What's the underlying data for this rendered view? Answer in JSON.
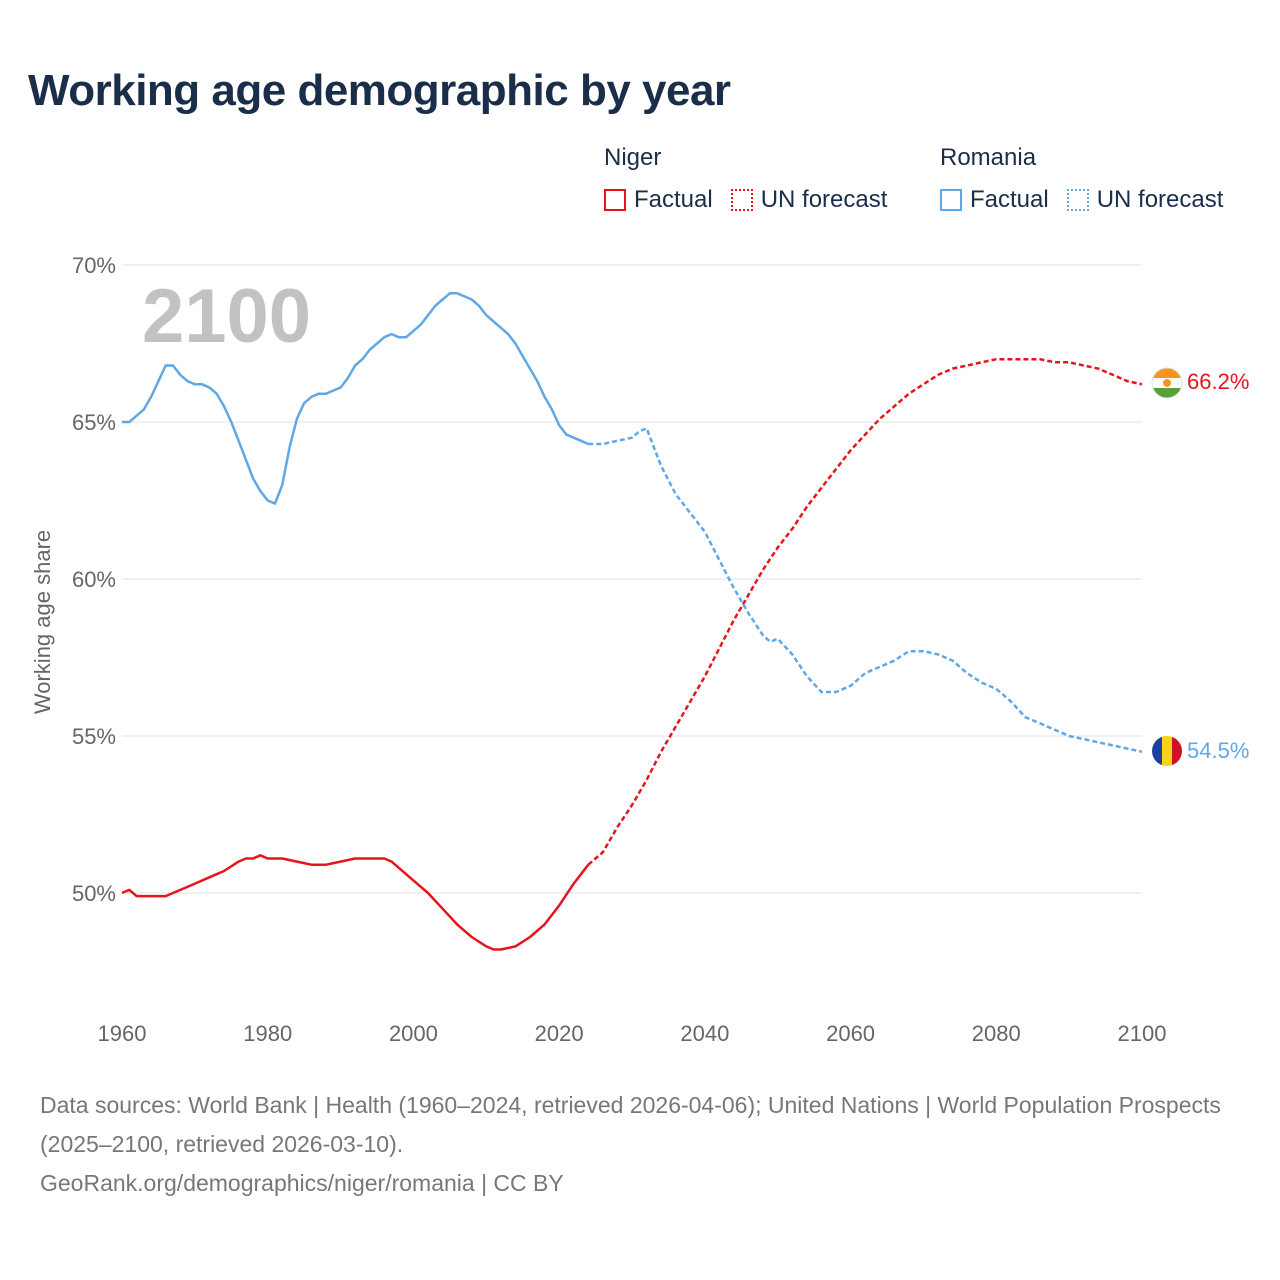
{
  "title": "Working age demographic by year",
  "watermark_year": "2100",
  "legend": {
    "groups": [
      {
        "name": "Niger",
        "factual_label": "Factual",
        "forecast_label": "UN forecast",
        "color": "#e8141b"
      },
      {
        "name": "Romania",
        "factual_label": "Factual",
        "forecast_label": "UN forecast",
        "color": "#5fa8e6"
      }
    ]
  },
  "footer": {
    "sources": "Data sources: World Bank | Health (1960–2024, retrieved 2026-04-06); United Nations | World Population Prospects (2025–2100, retrieved 2026-03-10).",
    "credit": "GeoRank.org/demographics/niger/romania | CC BY"
  },
  "chart_data": {
    "type": "line",
    "title": "Working age demographic by year",
    "xlabel": "",
    "ylabel": "Working age share",
    "xlim": [
      1960,
      2100
    ],
    "ylim": [
      47,
      70.5
    ],
    "x_ticks": [
      1960,
      1980,
      2000,
      2020,
      2040,
      2060,
      2080,
      2100
    ],
    "x_tick_labels": [
      "1960",
      "1980",
      "2000",
      "2020",
      "2040",
      "2060",
      "2080",
      "2100"
    ],
    "y_ticks": [
      50,
      55,
      60,
      65,
      70
    ],
    "y_tick_labels": [
      "50%",
      "55%",
      "60%",
      "65%",
      "70%"
    ],
    "grid": true,
    "factual_end_year": 2024,
    "series": [
      {
        "name": "Niger",
        "color": "#e8141b",
        "end_label": "66.2%",
        "points": [
          [
            1960,
            50.0
          ],
          [
            1961,
            50.1
          ],
          [
            1962,
            49.9
          ],
          [
            1964,
            49.9
          ],
          [
            1966,
            49.9
          ],
          [
            1968,
            50.1
          ],
          [
            1970,
            50.3
          ],
          [
            1972,
            50.5
          ],
          [
            1974,
            50.7
          ],
          [
            1976,
            51.0
          ],
          [
            1977,
            51.1
          ],
          [
            1978,
            51.1
          ],
          [
            1979,
            51.2
          ],
          [
            1980,
            51.1
          ],
          [
            1982,
            51.1
          ],
          [
            1984,
            51.0
          ],
          [
            1986,
            50.9
          ],
          [
            1988,
            50.9
          ],
          [
            1990,
            51.0
          ],
          [
            1992,
            51.1
          ],
          [
            1994,
            51.1
          ],
          [
            1996,
            51.1
          ],
          [
            1997,
            51.0
          ],
          [
            1998,
            50.8
          ],
          [
            2000,
            50.4
          ],
          [
            2002,
            50.0
          ],
          [
            2004,
            49.5
          ],
          [
            2006,
            49.0
          ],
          [
            2008,
            48.6
          ],
          [
            2010,
            48.3
          ],
          [
            2011,
            48.2
          ],
          [
            2012,
            48.2
          ],
          [
            2014,
            48.3
          ],
          [
            2016,
            48.6
          ],
          [
            2018,
            49.0
          ],
          [
            2020,
            49.6
          ],
          [
            2022,
            50.3
          ],
          [
            2024,
            50.9
          ],
          [
            2026,
            51.3
          ],
          [
            2028,
            52.1
          ],
          [
            2030,
            52.8
          ],
          [
            2032,
            53.6
          ],
          [
            2034,
            54.5
          ],
          [
            2036,
            55.3
          ],
          [
            2038,
            56.1
          ],
          [
            2040,
            56.9
          ],
          [
            2042,
            57.8
          ],
          [
            2044,
            58.7
          ],
          [
            2046,
            59.5
          ],
          [
            2048,
            60.3
          ],
          [
            2050,
            61.0
          ],
          [
            2052,
            61.6
          ],
          [
            2054,
            62.3
          ],
          [
            2056,
            62.9
          ],
          [
            2058,
            63.5
          ],
          [
            2060,
            64.1
          ],
          [
            2062,
            64.6
          ],
          [
            2064,
            65.1
          ],
          [
            2066,
            65.5
          ],
          [
            2068,
            65.9
          ],
          [
            2070,
            66.2
          ],
          [
            2072,
            66.5
          ],
          [
            2074,
            66.7
          ],
          [
            2076,
            66.8
          ],
          [
            2078,
            66.9
          ],
          [
            2080,
            67.0
          ],
          [
            2082,
            67.0
          ],
          [
            2084,
            67.0
          ],
          [
            2086,
            67.0
          ],
          [
            2088,
            66.9
          ],
          [
            2090,
            66.9
          ],
          [
            2092,
            66.8
          ],
          [
            2094,
            66.7
          ],
          [
            2096,
            66.5
          ],
          [
            2098,
            66.3
          ],
          [
            2100,
            66.2
          ]
        ]
      },
      {
        "name": "Romania",
        "color": "#5fa8e6",
        "end_label": "54.5%",
        "points": [
          [
            1960,
            65.0
          ],
          [
            1961,
            65.0
          ],
          [
            1962,
            65.2
          ],
          [
            1963,
            65.4
          ],
          [
            1964,
            65.8
          ],
          [
            1965,
            66.3
          ],
          [
            1966,
            66.8
          ],
          [
            1967,
            66.8
          ],
          [
            1968,
            66.5
          ],
          [
            1969,
            66.3
          ],
          [
            1970,
            66.2
          ],
          [
            1971,
            66.2
          ],
          [
            1972,
            66.1
          ],
          [
            1973,
            65.9
          ],
          [
            1974,
            65.5
          ],
          [
            1975,
            65.0
          ],
          [
            1976,
            64.4
          ],
          [
            1977,
            63.8
          ],
          [
            1978,
            63.2
          ],
          [
            1979,
            62.8
          ],
          [
            1980,
            62.5
          ],
          [
            1981,
            62.4
          ],
          [
            1982,
            63.0
          ],
          [
            1983,
            64.2
          ],
          [
            1984,
            65.1
          ],
          [
            1985,
            65.6
          ],
          [
            1986,
            65.8
          ],
          [
            1987,
            65.9
          ],
          [
            1988,
            65.9
          ],
          [
            1989,
            66.0
          ],
          [
            1990,
            66.1
          ],
          [
            1991,
            66.4
          ],
          [
            1992,
            66.8
          ],
          [
            1993,
            67.0
          ],
          [
            1994,
            67.3
          ],
          [
            1995,
            67.5
          ],
          [
            1996,
            67.7
          ],
          [
            1997,
            67.8
          ],
          [
            1998,
            67.7
          ],
          [
            1999,
            67.7
          ],
          [
            2000,
            67.9
          ],
          [
            2001,
            68.1
          ],
          [
            2002,
            68.4
          ],
          [
            2003,
            68.7
          ],
          [
            2004,
            68.9
          ],
          [
            2005,
            69.1
          ],
          [
            2006,
            69.1
          ],
          [
            2007,
            69.0
          ],
          [
            2008,
            68.9
          ],
          [
            2009,
            68.7
          ],
          [
            2010,
            68.4
          ],
          [
            2011,
            68.2
          ],
          [
            2012,
            68.0
          ],
          [
            2013,
            67.8
          ],
          [
            2014,
            67.5
          ],
          [
            2015,
            67.1
          ],
          [
            2016,
            66.7
          ],
          [
            2017,
            66.3
          ],
          [
            2018,
            65.8
          ],
          [
            2019,
            65.4
          ],
          [
            2020,
            64.9
          ],
          [
            2021,
            64.6
          ],
          [
            2022,
            64.5
          ],
          [
            2023,
            64.4
          ],
          [
            2024,
            64.3
          ],
          [
            2026,
            64.3
          ],
          [
            2028,
            64.4
          ],
          [
            2030,
            64.5
          ],
          [
            2031,
            64.7
          ],
          [
            2032,
            64.8
          ],
          [
            2034,
            63.6
          ],
          [
            2036,
            62.7
          ],
          [
            2038,
            62.1
          ],
          [
            2040,
            61.5
          ],
          [
            2042,
            60.6
          ],
          [
            2044,
            59.7
          ],
          [
            2046,
            58.9
          ],
          [
            2048,
            58.2
          ],
          [
            2049,
            58.0
          ],
          [
            2050,
            58.1
          ],
          [
            2052,
            57.6
          ],
          [
            2054,
            56.9
          ],
          [
            2056,
            56.4
          ],
          [
            2058,
            56.4
          ],
          [
            2060,
            56.6
          ],
          [
            2062,
            57.0
          ],
          [
            2064,
            57.2
          ],
          [
            2066,
            57.4
          ],
          [
            2068,
            57.7
          ],
          [
            2070,
            57.7
          ],
          [
            2072,
            57.6
          ],
          [
            2074,
            57.4
          ],
          [
            2076,
            57.0
          ],
          [
            2078,
            56.7
          ],
          [
            2080,
            56.5
          ],
          [
            2082,
            56.1
          ],
          [
            2084,
            55.6
          ],
          [
            2086,
            55.4
          ],
          [
            2088,
            55.2
          ],
          [
            2090,
            55.0
          ],
          [
            2092,
            54.9
          ],
          [
            2094,
            54.8
          ],
          [
            2096,
            54.7
          ],
          [
            2098,
            54.6
          ],
          [
            2100,
            54.5
          ]
        ]
      }
    ]
  }
}
